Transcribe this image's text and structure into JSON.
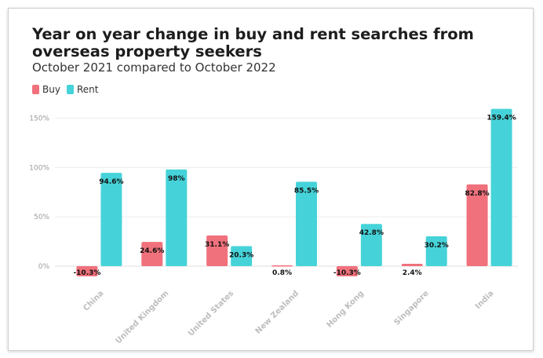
{
  "chart_data": {
    "type": "bar",
    "title": "Year on year change in buy and rent searches from overseas property seekers",
    "subtitle": "October 2021 compared to October 2022",
    "xlabel": "",
    "ylabel": "",
    "ylim": [
      -20,
      160
    ],
    "yticks": [
      0,
      50,
      100,
      150
    ],
    "ytick_labels": [
      "0%",
      "50%",
      "100%",
      "150%"
    ],
    "legend_position": "top-left",
    "categories": [
      "China",
      "United Kingdom",
      "United States",
      "New Zealand",
      "Hong Kong",
      "Singapore",
      "India"
    ],
    "series": [
      {
        "name": "Buy",
        "color": "#f0717c",
        "values": [
          -10.3,
          24.6,
          31.1,
          0.8,
          -10.3,
          2.4,
          82.8
        ],
        "labels": [
          "-10.3%",
          "24.6%",
          "31.1%",
          "0.8%",
          "-10.3%",
          "2.4%",
          "82.8%"
        ]
      },
      {
        "name": "Rent",
        "color": "#45d3d9",
        "values": [
          94.6,
          98,
          20.3,
          85.5,
          42.8,
          30.2,
          159.4
        ],
        "labels": [
          "94.6%",
          "98%",
          "20.3%",
          "85.5%",
          "42.8%",
          "30.2%",
          "159.4%"
        ]
      }
    ]
  }
}
